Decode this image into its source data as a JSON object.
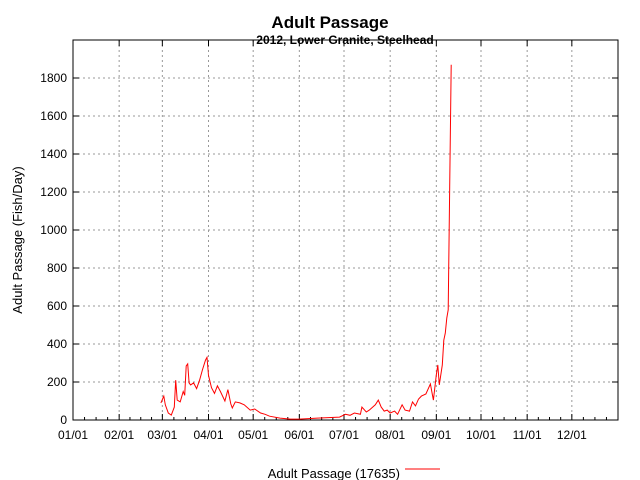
{
  "chart_data": {
    "type": "line",
    "title": "Adult Passage",
    "subtitle": "2012, Lower Granite, Steelhead",
    "xlabel": "",
    "ylabel": "Adult Passage (Fish/Day)",
    "x_unit": "day of year (0 = 01/01)",
    "xlim": [
      0,
      366
    ],
    "ylim": [
      0,
      2000
    ],
    "x_ticks": [
      {
        "day": 0,
        "label": "01/01"
      },
      {
        "day": 31,
        "label": "02/01"
      },
      {
        "day": 60,
        "label": "03/01"
      },
      {
        "day": 91,
        "label": "04/01"
      },
      {
        "day": 121,
        "label": "05/01"
      },
      {
        "day": 152,
        "label": "06/01"
      },
      {
        "day": 182,
        "label": "07/01"
      },
      {
        "day": 213,
        "label": "08/01"
      },
      {
        "day": 244,
        "label": "09/01"
      },
      {
        "day": 274,
        "label": "10/01"
      },
      {
        "day": 305,
        "label": "11/01"
      },
      {
        "day": 335,
        "label": "12/01"
      }
    ],
    "y_ticks": [
      0,
      200,
      400,
      600,
      800,
      1000,
      1200,
      1400,
      1600,
      1800
    ],
    "grid": true,
    "legend": {
      "label": "Adult Passage (17635)",
      "placement": "bottom-center"
    },
    "series": [
      {
        "name": "Adult Passage",
        "color": "#ff0000",
        "x": [
          59,
          61,
          62,
          64,
          66,
          68,
          69,
          70,
          72,
          74,
          75,
          76,
          77,
          78,
          79,
          81,
          83,
          85,
          87,
          89,
          90,
          91,
          93,
          95,
          97,
          99,
          102,
          104,
          106,
          107,
          109,
          112,
          115,
          119,
          122,
          126,
          129,
          132,
          139,
          146,
          152,
          164,
          179,
          183,
          186,
          189,
          193,
          194,
          197,
          199,
          203,
          205,
          207,
          209,
          211,
          213,
          216,
          218,
          221,
          223,
          226,
          228,
          230,
          232,
          234,
          237,
          240,
          241,
          242,
          244,
          245,
          246,
          248,
          249,
          250,
          251,
          252,
          253,
          254
        ],
        "y": [
          90,
          126,
          80,
          37,
          26,
          68,
          210,
          105,
          95,
          150,
          130,
          285,
          295,
          195,
          185,
          195,
          165,
          210,
          265,
          315,
          330,
          235,
          170,
          140,
          180,
          150,
          100,
          160,
          85,
          63,
          95,
          90,
          80,
          52,
          58,
          37,
          30,
          20,
          10,
          5,
          5,
          10,
          15,
          30,
          25,
          37,
          30,
          68,
          42,
          52,
          80,
          105,
          68,
          47,
          52,
          37,
          47,
          30,
          80,
          52,
          47,
          95,
          74,
          110,
          126,
          137,
          190,
          147,
          105,
          237,
          290,
          185,
          290,
          420,
          458,
          537,
          580,
          1230,
          1870
        ]
      }
    ]
  }
}
